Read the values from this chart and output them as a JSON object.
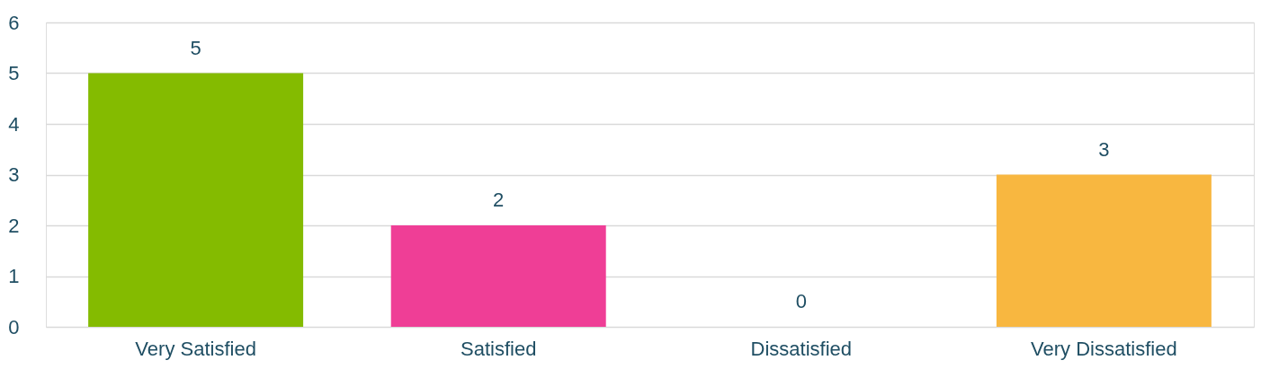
{
  "chart_data": {
    "type": "bar",
    "categories": [
      "Very Satisfied",
      "Satisfied",
      "Dissatisfied",
      "Very Dissatisfied"
    ],
    "values": [
      5,
      2,
      0,
      3
    ],
    "colors": [
      "#84bb00",
      "#ef3e96",
      "#3ba4c8",
      "#f8b740"
    ],
    "ylim": [
      0,
      6
    ],
    "yticks": [
      0,
      1,
      2,
      3,
      4,
      5,
      6
    ],
    "grid": "y",
    "data_labels": true
  }
}
